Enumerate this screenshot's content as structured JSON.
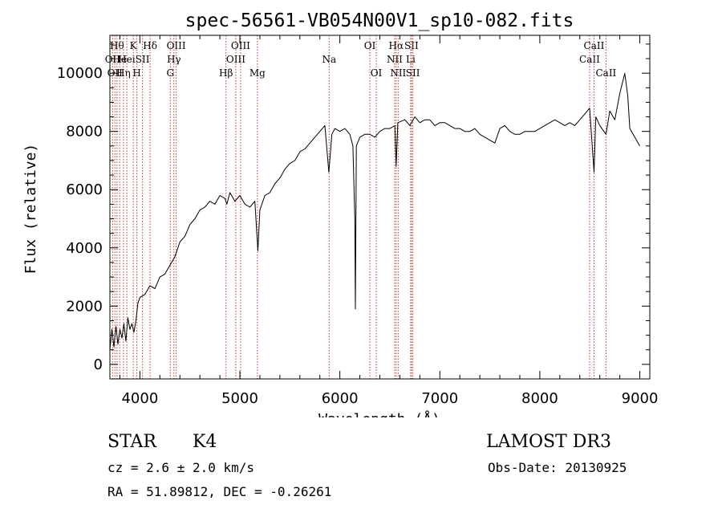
{
  "chart_data": {
    "type": "line",
    "title": "spec-56561-VB054N00V1_sp10-082.fits",
    "xlabel": "Wavelength (Å)",
    "ylabel": "Flux (relative)",
    "xlim": [
      3700,
      9100
    ],
    "ylim": [
      -500,
      11300
    ],
    "xticks": [
      4000,
      5000,
      6000,
      7000,
      8000,
      9000
    ],
    "yticks": [
      0,
      2000,
      4000,
      6000,
      8000,
      10000
    ],
    "grid": false,
    "series": [
      {
        "name": "flux",
        "points": [
          [
            3700,
            500
          ],
          [
            3720,
            1200
          ],
          [
            3740,
            600
          ],
          [
            3760,
            1300
          ],
          [
            3780,
            700
          ],
          [
            3800,
            1200
          ],
          [
            3820,
            900
          ],
          [
            3840,
            1400
          ],
          [
            3860,
            800
          ],
          [
            3880,
            1600
          ],
          [
            3900,
            1200
          ],
          [
            3920,
            1400
          ],
          [
            3940,
            1100
          ],
          [
            3960,
            1500
          ],
          [
            3980,
            2100
          ],
          [
            4000,
            2300
          ],
          [
            4050,
            2400
          ],
          [
            4100,
            2700
          ],
          [
            4150,
            2600
          ],
          [
            4200,
            3000
          ],
          [
            4250,
            3100
          ],
          [
            4300,
            3400
          ],
          [
            4350,
            3700
          ],
          [
            4400,
            4200
          ],
          [
            4450,
            4400
          ],
          [
            4500,
            4800
          ],
          [
            4550,
            5000
          ],
          [
            4600,
            5300
          ],
          [
            4650,
            5400
          ],
          [
            4700,
            5600
          ],
          [
            4750,
            5500
          ],
          [
            4800,
            5800
          ],
          [
            4850,
            5700
          ],
          [
            4870,
            5500
          ],
          [
            4900,
            5900
          ],
          [
            4950,
            5600
          ],
          [
            5000,
            5800
          ],
          [
            5050,
            5500
          ],
          [
            5100,
            5400
          ],
          [
            5150,
            5600
          ],
          [
            5180,
            3900
          ],
          [
            5200,
            5300
          ],
          [
            5250,
            5800
          ],
          [
            5300,
            5900
          ],
          [
            5350,
            6200
          ],
          [
            5400,
            6400
          ],
          [
            5450,
            6700
          ],
          [
            5500,
            6900
          ],
          [
            5550,
            7000
          ],
          [
            5600,
            7300
          ],
          [
            5650,
            7400
          ],
          [
            5700,
            7600
          ],
          [
            5750,
            7800
          ],
          [
            5800,
            8000
          ],
          [
            5850,
            8200
          ],
          [
            5890,
            6600
          ],
          [
            5920,
            7900
          ],
          [
            5950,
            8100
          ],
          [
            6000,
            8000
          ],
          [
            6050,
            8100
          ],
          [
            6100,
            7900
          ],
          [
            6130,
            7500
          ],
          [
            6150,
            5000
          ],
          [
            6155,
            1900
          ],
          [
            6165,
            7500
          ],
          [
            6200,
            7800
          ],
          [
            6250,
            7900
          ],
          [
            6300,
            7900
          ],
          [
            6350,
            7800
          ],
          [
            6400,
            8000
          ],
          [
            6450,
            8100
          ],
          [
            6500,
            8100
          ],
          [
            6550,
            8200
          ],
          [
            6563,
            6800
          ],
          [
            6580,
            8300
          ],
          [
            6650,
            8400
          ],
          [
            6700,
            8200
          ],
          [
            6750,
            8500
          ],
          [
            6800,
            8300
          ],
          [
            6850,
            8400
          ],
          [
            6900,
            8400
          ],
          [
            6950,
            8200
          ],
          [
            7000,
            8300
          ],
          [
            7050,
            8300
          ],
          [
            7100,
            8200
          ],
          [
            7150,
            8100
          ],
          [
            7200,
            8100
          ],
          [
            7250,
            8000
          ],
          [
            7300,
            8000
          ],
          [
            7350,
            8100
          ],
          [
            7400,
            7900
          ],
          [
            7450,
            7800
          ],
          [
            7500,
            7700
          ],
          [
            7550,
            7600
          ],
          [
            7600,
            8100
          ],
          [
            7650,
            8200
          ],
          [
            7700,
            8000
          ],
          [
            7750,
            7900
          ],
          [
            7800,
            7900
          ],
          [
            7850,
            8000
          ],
          [
            7900,
            8000
          ],
          [
            7950,
            8000
          ],
          [
            8000,
            8100
          ],
          [
            8050,
            8200
          ],
          [
            8100,
            8300
          ],
          [
            8150,
            8400
          ],
          [
            8200,
            8300
          ],
          [
            8250,
            8200
          ],
          [
            8300,
            8300
          ],
          [
            8350,
            8200
          ],
          [
            8400,
            8400
          ],
          [
            8450,
            8600
          ],
          [
            8498,
            8800
          ],
          [
            8542,
            6600
          ],
          [
            8560,
            8500
          ],
          [
            8600,
            8200
          ],
          [
            8662,
            7900
          ],
          [
            8700,
            8700
          ],
          [
            8750,
            8400
          ],
          [
            8800,
            9300
          ],
          [
            8850,
            10000
          ],
          [
            8880,
            9200
          ],
          [
            8900,
            8100
          ],
          [
            8950,
            7800
          ],
          [
            9000,
            7500
          ]
        ]
      }
    ],
    "line_markers": [
      {
        "wavelength": 3727,
        "label": "OII",
        "row": 2
      },
      {
        "wavelength": 3750,
        "label": "OII",
        "row": 3
      },
      {
        "wavelength": 3771,
        "label": "Hθ",
        "row": 1
      },
      {
        "wavelength": 3798,
        "label": "He",
        "row": 2
      },
      {
        "wavelength": 3835,
        "label": "Hη",
        "row": 3
      },
      {
        "wavelength": 3869,
        "label": "Hei",
        "row": 2
      },
      {
        "wavelength": 3934,
        "label": "K",
        "row": 1
      },
      {
        "wavelength": 3970,
        "label": "H",
        "row": 3
      },
      {
        "wavelength": 4026,
        "label": "SII",
        "row": 2
      },
      {
        "wavelength": 4102,
        "label": "Hδ",
        "row": 1
      },
      {
        "wavelength": 4304,
        "label": "G",
        "row": 3
      },
      {
        "wavelength": 4340,
        "label": "Hγ",
        "row": 2
      },
      {
        "wavelength": 4363,
        "label": "OIII",
        "row": 1
      },
      {
        "wavelength": 4861,
        "label": "Hβ",
        "row": 3
      },
      {
        "wavelength": 4959,
        "label": "OIII",
        "row": 2
      },
      {
        "wavelength": 5007,
        "label": "OIII",
        "row": 1
      },
      {
        "wavelength": 5175,
        "label": "Mg",
        "row": 3
      },
      {
        "wavelength": 5893,
        "label": "Na",
        "row": 2
      },
      {
        "wavelength": 6300,
        "label": "OI",
        "row": 1
      },
      {
        "wavelength": 6364,
        "label": "OI",
        "row": 3
      },
      {
        "wavelength": 6548,
        "label": "NII",
        "row": 2
      },
      {
        "wavelength": 6563,
        "label": "Hα",
        "row": 1
      },
      {
        "wavelength": 6583,
        "label": "NII",
        "row": 3
      },
      {
        "wavelength": 6708,
        "label": "Li",
        "row": 2
      },
      {
        "wavelength": 6716,
        "label": "SII",
        "row": 1
      },
      {
        "wavelength": 6730,
        "label": "SII",
        "row": 3
      },
      {
        "wavelength": 8498,
        "label": "CaII",
        "row": 2
      },
      {
        "wavelength": 8542,
        "label": "CaII",
        "row": 1
      },
      {
        "wavelength": 8662,
        "label": "CaII",
        "row": 3
      }
    ]
  },
  "info": {
    "object_class": "STAR",
    "subclass": "K4",
    "cz": "cz = 2.6 ± 2.0 km/s",
    "coords": "RA =  51.89812, DEC =  -0.26261",
    "survey": "LAMOST DR3",
    "obs_date": "Obs-Date: 20130925"
  },
  "colors": {
    "line": "#000000",
    "marker": "#c0392b",
    "axis": "#000000"
  }
}
